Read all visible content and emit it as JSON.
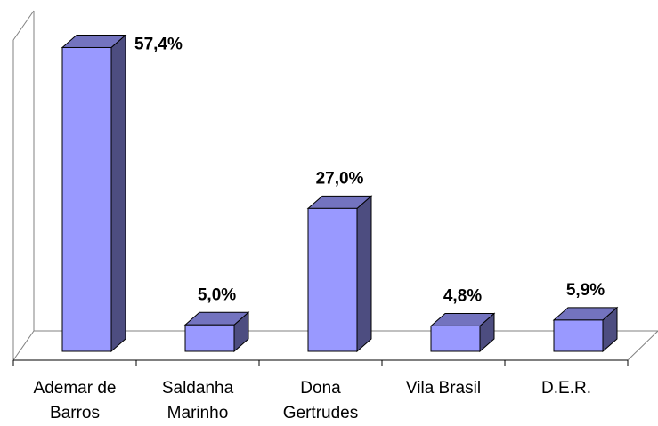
{
  "chart_data": {
    "type": "bar3d",
    "categories": [
      "Ademar de Barros",
      "Saldanha Marinho",
      "Dona Gertrudes",
      "Vila Brasil",
      "D.E.R."
    ],
    "values": [
      57.4,
      5.0,
      27.0,
      4.8,
      5.9
    ],
    "value_labels": [
      "57,4%",
      "5,0%",
      "27,0%",
      "4,8%",
      "5,9%"
    ],
    "color": "#9999ff"
  }
}
